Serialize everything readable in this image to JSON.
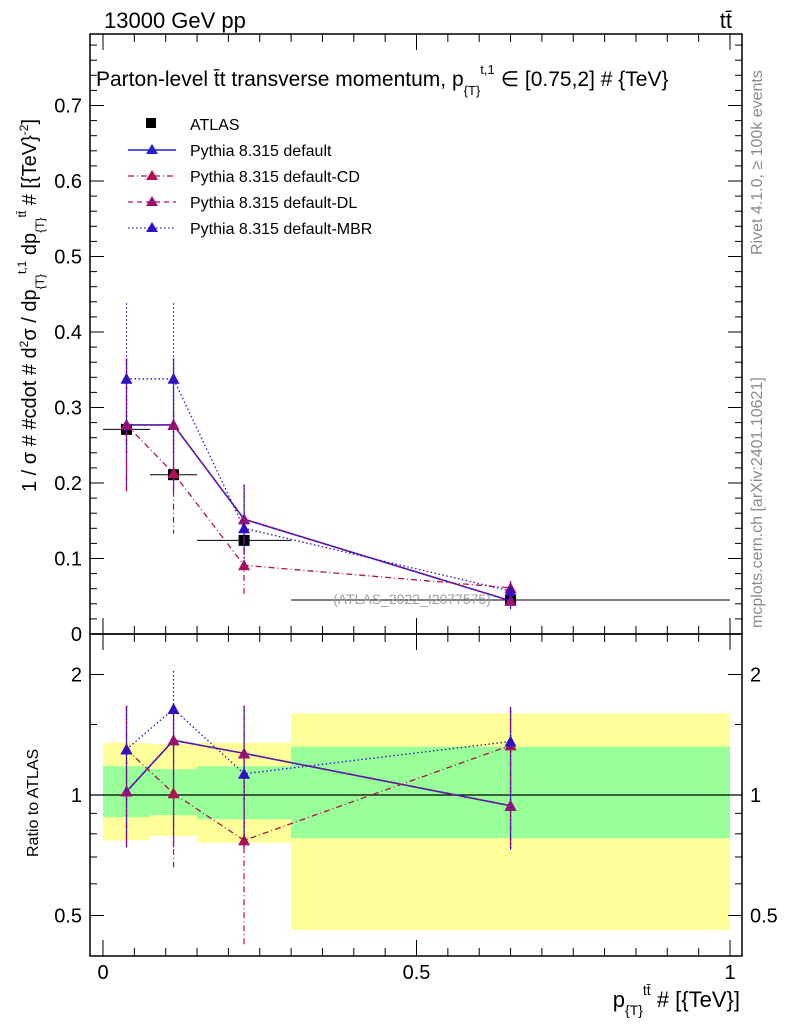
{
  "header": {
    "energy_label": "13000 GeV pp",
    "process_label": "tt̄"
  },
  "side_text": {
    "rivet": "Rivet 4.1.0, ≥ 100k events",
    "mcplots": "mcplots.cern.ch [arXiv:2401.10621]"
  },
  "chart_data": [
    {
      "type": "line",
      "panel": "main",
      "title": "Parton-level t̄t transverse momentum, p_{T}^{t,1} ∈ [0.75,2] # {TeV}",
      "title_main": "Parton-level t̄t transverse momentum, p",
      "title_sub": "{T}",
      "title_sup": "t,1",
      "title_tail": "∈ [0.75,2] # {TeV}",
      "ylabel": "1 / σ # #cdot # d²σ / dp_{T}^{t,1} dp_{T}^{tt̄} # [{TeV}⁻²]",
      "ylabel_parts": {
        "a": "1 / σ # #cdot # d",
        "b": "2",
        "c": "σ / dp",
        "d": "{T}",
        "e": "t,1",
        "f": " dp",
        "g": "{T}",
        "h": "tt̄",
        "i": " # [{TeV}",
        "j": "-2",
        "k": "]"
      },
      "watermark": "(ATLAS_2022_I2077575)",
      "ylim": [
        0,
        0.8
      ],
      "xlim": [
        0,
        1
      ],
      "yticks": [
        0,
        0.1,
        0.2,
        0.3,
        0.4,
        0.5,
        0.6,
        0.7
      ],
      "ytick_labels": [
        "0",
        "0.1",
        "0.2",
        "0.3",
        "0.4",
        "0.5",
        "0.6",
        "0.7"
      ],
      "legend": [
        "ATLAS",
        "Pythia 8.315 default",
        "Pythia 8.315 default-CD",
        "Pythia 8.315 default-DL",
        "Pythia 8.315 default-MBR"
      ],
      "data": {
        "name": "ATLAS",
        "x": [
          0.0375,
          0.1125,
          0.225,
          0.65
        ],
        "xerr": [
          0.0375,
          0.0375,
          0.075,
          0.35
        ],
        "y": [
          0.271,
          0.211,
          0.124,
          0.045
        ],
        "yerr": [
          0.0,
          0.0,
          0.0,
          0.0
        ]
      },
      "series": [
        {
          "name": "Pythia 8.315 default",
          "color": "#2020d0",
          "style": "solid",
          "x": [
            0.0375,
            0.1125,
            0.225,
            0.65
          ],
          "y": [
            0.277,
            0.277,
            0.152,
            0.044
          ],
          "yerr": [
            0.088,
            0.088,
            0.046,
            0.011
          ]
        },
        {
          "name": "Pythia 8.315 default-CD",
          "color": "#b01050",
          "style": "dashdot",
          "x": [
            0.0375,
            0.1125,
            0.225,
            0.65
          ],
          "y": [
            0.277,
            0.213,
            0.091,
            0.061
          ],
          "yerr": [
            0.088,
            0.08,
            0.039,
            0.009
          ]
        },
        {
          "name": "Pythia 8.315 default-DL",
          "color": "#a01070",
          "style": "dashed",
          "x": [
            0.0375,
            0.1125,
            0.225,
            0.65
          ],
          "y": [
            0.277,
            0.277,
            0.152,
            0.044
          ],
          "yerr": [
            0.088,
            0.088,
            0.046,
            0.011
          ]
        },
        {
          "name": "Pythia 8.315 default-MBR",
          "color": "#3010c0",
          "style": "dotted",
          "x": [
            0.0375,
            0.1125,
            0.225,
            0.65
          ],
          "y": [
            0.338,
            0.338,
            0.14,
            0.057
          ],
          "yerr": [
            0.1,
            0.1,
            0.058,
            0.012
          ]
        }
      ]
    },
    {
      "type": "line",
      "panel": "ratio",
      "ylabel": "Ratio to ATLAS",
      "xlabel": "p_{T}^{tt̄} # [{TeV}]",
      "xlabel_parts": {
        "a": "p",
        "b": "{T}",
        "c": "tt̄",
        "d": " # [{TeV}]"
      },
      "ylim_log": [
        0.4,
        2.4
      ],
      "yticks": [
        0.5,
        1,
        2
      ],
      "ytick_labels": [
        "0.5",
        "1",
        "2"
      ],
      "xticks": [
        0,
        0.5,
        1
      ],
      "xtick_labels": [
        "0",
        "0.5",
        "1"
      ],
      "bands": [
        {
          "xlo": 0.0,
          "xhi": 0.075,
          "inner": [
            0.88,
            1.18
          ],
          "outer": [
            0.77,
            1.35
          ]
        },
        {
          "xlo": 0.075,
          "xhi": 0.15,
          "inner": [
            0.89,
            1.16
          ],
          "outer": [
            0.79,
            1.34
          ]
        },
        {
          "xlo": 0.15,
          "xhi": 0.3,
          "inner": [
            0.87,
            1.18
          ],
          "outer": [
            0.76,
            1.35
          ]
        },
        {
          "xlo": 0.3,
          "xhi": 1.0,
          "inner": [
            0.78,
            1.32
          ],
          "outer": [
            0.46,
            1.6
          ]
        }
      ],
      "series": [
        {
          "name": "Pythia 8.315 default",
          "color": "#2020d0",
          "style": "solid",
          "x": [
            0.0375,
            0.1125,
            0.225,
            0.65
          ],
          "y": [
            1.02,
            1.37,
            1.27,
            0.94
          ],
          "ylo": [
            0.74,
            0.74,
            0.74,
            0.73
          ],
          "yhi": [
            1.67,
            1.67,
            1.67,
            1.65
          ]
        },
        {
          "name": "Pythia 8.315 default-CD",
          "color": "#b01050",
          "style": "dashdot",
          "x": [
            0.0375,
            0.1125,
            0.225,
            0.65
          ],
          "y": [
            1.3,
            1.01,
            0.77,
            1.33
          ],
          "ylo": [
            0.74,
            0.66,
            0.42,
            0.73
          ],
          "yhi": [
            1.67,
            1.67,
            1.25,
            1.65
          ]
        },
        {
          "name": "Pythia 8.315 default-DL",
          "color": "#a01070",
          "style": "dashed",
          "x": [
            0.0375,
            0.1125,
            0.225,
            0.65
          ],
          "y": [
            1.02,
            1.37,
            1.27,
            0.94
          ],
          "ylo": [
            0.74,
            0.74,
            0.74,
            0.73
          ],
          "yhi": [
            1.67,
            1.67,
            1.67,
            1.65
          ]
        },
        {
          "name": "Pythia 8.315 default-MBR",
          "color": "#3010c0",
          "style": "dotted",
          "x": [
            0.0375,
            0.1125,
            0.225,
            0.65
          ],
          "y": [
            1.3,
            1.64,
            1.13,
            1.36
          ],
          "ylo": [
            0.74,
            1.27,
            0.74,
            0.73
          ],
          "yhi": [
            1.67,
            2.04,
            1.67,
            1.66
          ]
        }
      ]
    }
  ]
}
